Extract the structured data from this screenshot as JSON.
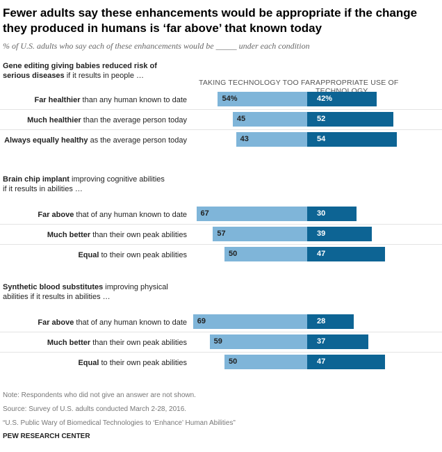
{
  "title": "Fewer adults say these enhancements would be appropriate if the change they produced in humans is ‘far above’ that known today",
  "subtitle": "% of U.S. adults who say each of these enhancements would be _____ under each condition",
  "columns": {
    "left": "TAKING TECHNOLOGY TOO FAR",
    "right": "APPROPRIATE USE OF TECHNOLOGY"
  },
  "groups": [
    {
      "head_bold": "Gene editing giving babies reduced risk of serious diseases",
      "head_rest": " if it results in people …"
    },
    {
      "head_bold": "Brain chip implant",
      "head_rest": " improving cognitive abilities if it results in abilities …"
    },
    {
      "head_bold": "Synthetic blood substitutes",
      "head_rest": " improving physical abilities if it results in abilities …"
    }
  ],
  "rows": [
    {
      "label_bold": "Far healthier",
      "label_rest": " than any human known to date"
    },
    {
      "label_bold": "Much healthier",
      "label_rest": " than the average person today"
    },
    {
      "label_bold": "Always equally healthy",
      "label_rest": " as the average person today"
    },
    {
      "label_bold": "Far above",
      "label_rest": " that of any human known to date"
    },
    {
      "label_bold": "Much better",
      "label_rest": " than their own peak abilities"
    },
    {
      "label_bold": "Equal",
      "label_rest": " to their own peak abilities"
    },
    {
      "label_bold": "Far above",
      "label_rest": " that of any human known to date"
    },
    {
      "label_bold": "Much better",
      "label_rest": " than their own peak abilities"
    },
    {
      "label_bold": "Equal",
      "label_rest": " to their own peak abilities"
    }
  ],
  "chart_data": {
    "type": "bar",
    "orientation": "horizontal-diverging",
    "title": "Fewer adults say these enhancements would be appropriate if the change they produced in humans is ‘far above’ that known today",
    "unit": "%",
    "categories": [
      "Gene editing: Far healthier than any human known to date",
      "Gene editing: Much healthier than the average person today",
      "Gene editing: Always equally healthy as the average person today",
      "Brain chip implant: Far above that of any human known to date",
      "Brain chip implant: Much better than their own peak abilities",
      "Brain chip implant: Equal to their own peak abilities",
      "Synthetic blood: Far above that of any human known to date",
      "Synthetic blood: Much better than their own peak abilities",
      "Synthetic blood: Equal to their own peak abilities"
    ],
    "series": [
      {
        "name": "TAKING TECHNOLOGY TOO FAR",
        "color": "#7fb5d9",
        "values": [
          54,
          45,
          43,
          67,
          57,
          50,
          69,
          59,
          50
        ]
      },
      {
        "name": "APPROPRIATE USE OF TECHNOLOGY",
        "color": "#0d6494",
        "values": [
          42,
          52,
          54,
          30,
          39,
          47,
          28,
          37,
          47
        ]
      }
    ],
    "value_labels": {
      "far": [
        "54%",
        "45",
        "43",
        "67",
        "57",
        "50",
        "69",
        "59",
        "50"
      ],
      "app": [
        "42%",
        "52",
        "54",
        "30",
        "39",
        "47",
        "28",
        "37",
        "47"
      ]
    }
  },
  "notes": {
    "note": "Note: Respondents who did not give an answer are not shown.",
    "source": "Source: Survey of U.S. adults conducted March 2-28, 2016.",
    "report": "“U.S. Public Wary of Biomedical Technologies to ‘Enhance’ Human Abilities”",
    "brand": "PEW RESEARCH CENTER"
  }
}
